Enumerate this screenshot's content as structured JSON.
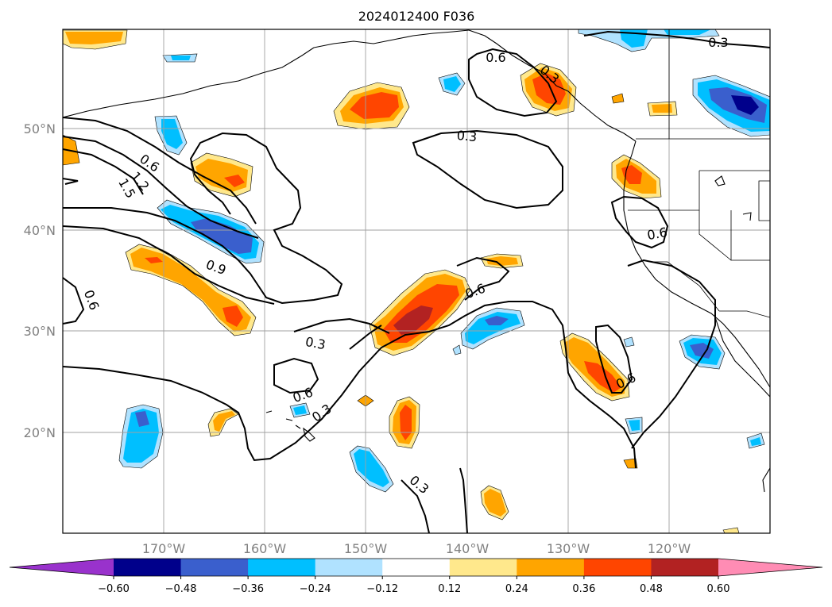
{
  "title": "2024012400 F036",
  "lon_labels": [
    "170°W",
    "160°W",
    "150°W",
    "140°W",
    "130°W",
    "120°W"
  ],
  "lat_labels": [
    "50°N",
    "40°N",
    "30°N",
    "20°N"
  ],
  "colorbar": {
    "ticks": [
      "−0.60",
      "−0.48",
      "−0.36",
      "−0.24",
      "−0.12",
      "0.12",
      "0.24",
      "0.36",
      "0.48",
      "0.60"
    ],
    "colors": [
      "#9932cc",
      "#00008b",
      "#3a5fcd",
      "#00bfff",
      "#b0e2ff",
      "#ffffff",
      "#ffe88c",
      "#ffa500",
      "#ff4500",
      "#b22222",
      "#ff8cb4"
    ]
  },
  "contour_labels": [
    "0.6",
    "1.2",
    "1.5",
    "0.9",
    "0.6",
    "0.3",
    "0.3",
    "0.6",
    "0.6",
    "0.3",
    "0.6",
    "0.3",
    "0.6",
    "0.3",
    "0.6",
    "0.3"
  ]
}
